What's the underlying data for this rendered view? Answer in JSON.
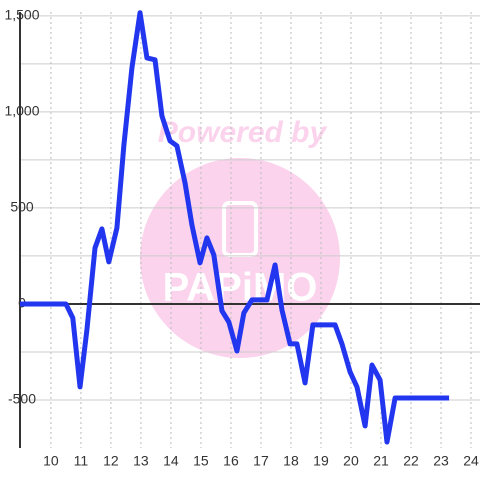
{
  "chart_data": {
    "type": "line",
    "x": [
      8.97,
      10.5,
      10.73,
      10.97,
      11.2,
      11.47,
      11.7,
      11.93,
      12.2,
      12.43,
      12.7,
      12.97,
      13.2,
      13.47,
      13.7,
      13.97,
      14.2,
      14.47,
      14.7,
      14.97,
      15.2,
      15.43,
      15.7,
      15.93,
      16.2,
      16.43,
      16.7,
      16.93,
      17.2,
      17.47,
      17.7,
      17.97,
      18.2,
      18.47,
      18.73,
      18.97,
      19.2,
      19.47,
      19.7,
      19.97,
      20.2,
      20.47,
      20.7,
      20.97,
      21.2,
      21.47,
      23.27
    ],
    "series": [
      {
        "color": "#2236f0",
        "values": [
          0,
          0,
          -73,
          -432,
          -135,
          292,
          391,
          219,
          396,
          823,
          1229,
          1516,
          1281,
          1271,
          979,
          849,
          823,
          630,
          411,
          214,
          344,
          255,
          -36,
          -94,
          -245,
          -47,
          21,
          21,
          21,
          203,
          -31,
          -208,
          -208,
          -411,
          -109,
          -109,
          -109,
          -109,
          -208,
          -354,
          -432,
          -635,
          -318,
          -396,
          -719,
          -490,
          -490
        ]
      }
    ],
    "xlim": [
      8.97,
      24.3
    ],
    "xticks": [
      10,
      11,
      12,
      13,
      14,
      15,
      16,
      17,
      18,
      19,
      20,
      21,
      22,
      23,
      24
    ],
    "ylim": [
      -750,
      1520
    ],
    "yticks": [
      {
        "value": -500,
        "label": "-500"
      },
      0,
      500,
      {
        "value": 1000,
        "label": "1,000"
      },
      {
        "value": 1500,
        "label": "1,500"
      }
    ],
    "y_minor_ticks": [
      -250,
      250,
      750,
      1250
    ],
    "grid": true
  },
  "watermark": {
    "line1": "Powered by",
    "line2": "PAPiMO"
  }
}
